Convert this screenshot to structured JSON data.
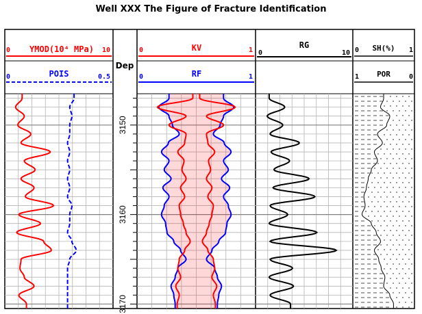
{
  "title": "Well XXX The Figure of Fracture Identification",
  "colors": {
    "red": "#ff0000",
    "blue": "#0000ff",
    "black": "#000000",
    "grid": "#b4b4b4"
  },
  "tracks": {
    "t1": {
      "curve1": {
        "name": "YMOD(10⁴ MPa)",
        "min": "0",
        "max": "10",
        "color": "#ff0000"
      },
      "curve2": {
        "name": "POIS",
        "min": "0",
        "max": "0.5",
        "color": "#0000ff",
        "dashed": true
      }
    },
    "depth": {
      "label": "Dep",
      "ticks": [
        "3150",
        "3160",
        "3170"
      ]
    },
    "t3": {
      "curve1": {
        "name": "KV",
        "min": "0",
        "max": "1",
        "color": "#ff0000"
      },
      "curve2": {
        "name": "RF",
        "min": "0",
        "max": "1",
        "color": "#0000ff"
      }
    },
    "t4": {
      "curve1": {
        "name": "RG",
        "min": "0",
        "max": "10",
        "color": "#000000"
      }
    },
    "t5": {
      "curve1": {
        "name": "SH(%)",
        "min": "0",
        "max": "1"
      },
      "curve2": {
        "name": "POR",
        "min": "1",
        "max": "0"
      }
    }
  },
  "chart_data": {
    "type": "line",
    "title": "Well XXX The Figure of Fracture Identification",
    "ylabel": "Dep",
    "ylim": [
      3146.5,
      3170.5
    ],
    "y_inverted": true,
    "depth_ticks": [
      3150,
      3160,
      3170
    ],
    "series": [
      {
        "name": "YMOD(10⁴ MPa)",
        "xlim": [
          0,
          10
        ],
        "depth": [
          3147,
          3148,
          3149,
          3150,
          3151,
          3152,
          3153,
          3154,
          3155,
          3156,
          3157,
          3158,
          3159,
          3160,
          3161,
          3162,
          3163,
          3164,
          3165,
          3166,
          3167,
          3168,
          3169,
          3170
        ],
        "values": [
          1.6,
          1.0,
          1.8,
          1.2,
          2.4,
          1.5,
          4.2,
          1.8,
          2.8,
          1.5,
          2.7,
          1.9,
          4.5,
          1.3,
          3.3,
          1.1,
          3.6,
          4.3,
          1.5,
          1.4,
          1.8,
          2.7,
          1.3,
          2.0
        ]
      },
      {
        "name": "POIS",
        "xlim": [
          0,
          0.5
        ],
        "depth": [
          3147,
          3148,
          3149,
          3150,
          3151,
          3152,
          3153,
          3154,
          3155,
          3156,
          3157,
          3158,
          3159,
          3160,
          3161,
          3162,
          3163,
          3164,
          3165,
          3166,
          3167,
          3168,
          3169,
          3170
        ],
        "values": [
          0.32,
          0.3,
          0.31,
          0.3,
          0.3,
          0.29,
          0.3,
          0.29,
          0.3,
          0.29,
          0.3,
          0.29,
          0.31,
          0.3,
          0.3,
          0.29,
          0.31,
          0.33,
          0.3,
          0.29,
          0.29,
          0.29,
          0.29,
          0.29
        ]
      },
      {
        "name": "KV",
        "xlim": [
          0,
          1
        ],
        "depth": [
          3147,
          3148,
          3149,
          3150,
          3151,
          3152,
          3153,
          3154,
          3155,
          3156,
          3157,
          3158,
          3159,
          3160,
          3161,
          3162,
          3163,
          3164,
          3165,
          3166,
          3167,
          3168,
          3169,
          3170
        ],
        "values": [
          0.2,
          0.72,
          0.3,
          0.55,
          0.3,
          0.32,
          0.42,
          0.33,
          0.36,
          0.3,
          0.38,
          0.32,
          0.4,
          0.38,
          0.34,
          0.3,
          0.24,
          0.32,
          0.4,
          0.42,
          0.38,
          0.45,
          0.4,
          0.43
        ]
      },
      {
        "name": "RF",
        "xlim": [
          0,
          1
        ],
        "depth": [
          3147,
          3148,
          3149,
          3150,
          3151,
          3152,
          3153,
          3154,
          3155,
          3156,
          3157,
          3158,
          3159,
          3160,
          3161,
          3162,
          3163,
          3164,
          3165,
          3166,
          3167,
          3168,
          3169,
          3170
        ],
        "values": [
          0.55,
          0.7,
          0.55,
          0.5,
          0.4,
          0.56,
          0.66,
          0.55,
          0.62,
          0.52,
          0.64,
          0.55,
          0.62,
          0.66,
          0.6,
          0.58,
          0.48,
          0.38,
          0.3,
          0.42,
          0.46,
          0.52,
          0.48,
          0.46
        ]
      },
      {
        "name": "RG",
        "xlim": [
          0,
          10
        ],
        "depth": [
          3147,
          3148,
          3149,
          3150,
          3151,
          3152,
          3153,
          3154,
          3155,
          3156,
          3157,
          3158,
          3159,
          3160,
          3161,
          3162,
          3163,
          3164,
          3165,
          3166,
          3167,
          3168,
          3169,
          3170
        ],
        "values": [
          1.4,
          3.0,
          1.2,
          2.8,
          1.5,
          4.5,
          1.6,
          3.5,
          1.9,
          5.5,
          1.8,
          6.1,
          1.5,
          3.3,
          1.4,
          6.3,
          1.5,
          8.3,
          1.5,
          3.8,
          1.4,
          3.9,
          1.5,
          3.6
        ]
      },
      {
        "name": "SH(%)",
        "xlim": [
          0,
          1
        ],
        "depth": [
          3147,
          3148,
          3149,
          3150,
          3151,
          3152,
          3153,
          3154,
          3155,
          3156,
          3157,
          3158,
          3159,
          3160,
          3161,
          3162,
          3163,
          3164,
          3165,
          3166,
          3167,
          3168,
          3169,
          3170
        ],
        "values": [
          0.5,
          0.45,
          0.6,
          0.55,
          0.4,
          0.48,
          0.35,
          0.4,
          0.3,
          0.25,
          0.22,
          0.18,
          0.2,
          0.15,
          0.3,
          0.38,
          0.45,
          0.35,
          0.42,
          0.46,
          0.52,
          0.5,
          0.6,
          0.66
        ]
      }
    ]
  }
}
